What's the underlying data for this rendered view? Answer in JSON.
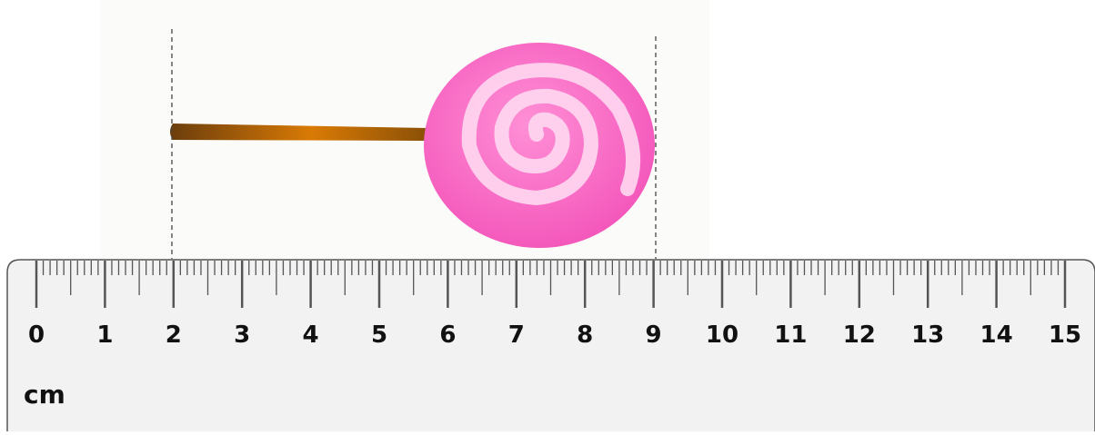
{
  "ruler": {
    "labels": [
      "0",
      "1",
      "2",
      "3",
      "4",
      "5",
      "6",
      "7",
      "8",
      "9",
      "10",
      "11",
      "12",
      "13",
      "14",
      "15"
    ],
    "unit": "cm"
  }
}
